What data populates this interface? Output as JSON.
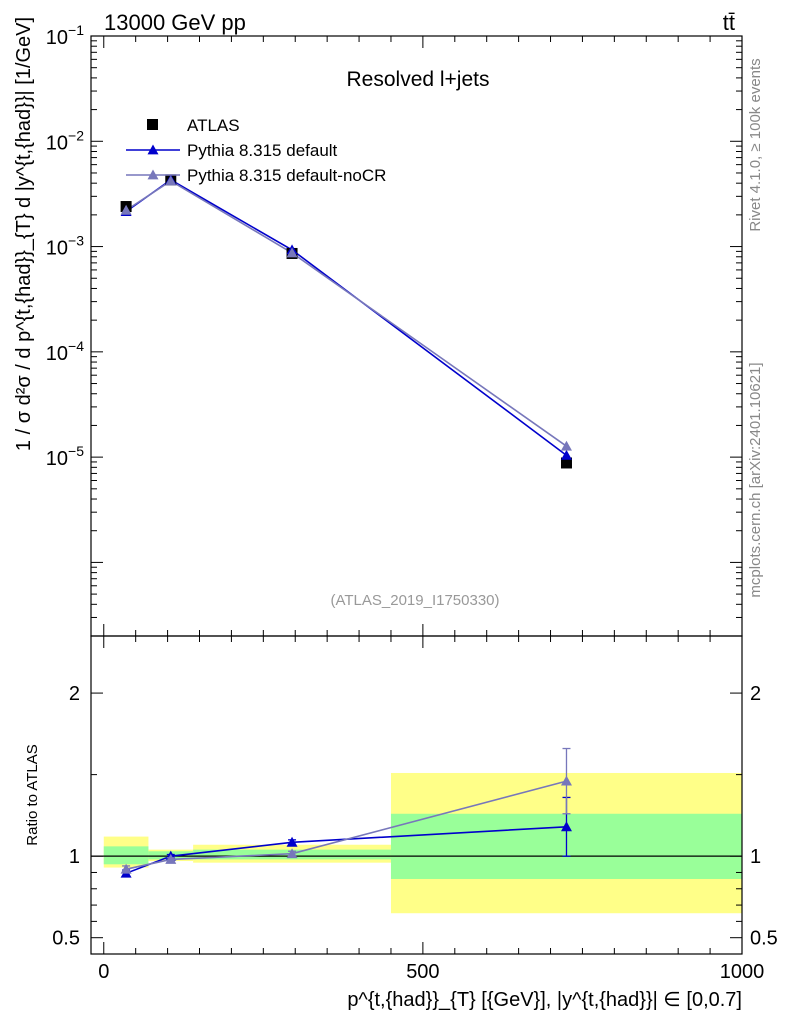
{
  "header": {
    "energy_label": "13000 GeV pp",
    "process_label": "tt̄",
    "analysis_id": "(ATLAS_2019_I1750330)",
    "side_label_top": "Rivet 4.1.0, ≥ 100k events",
    "side_label_bottom": "mcplots.cern.ch [arXiv:2401.10621]"
  },
  "colors": {
    "atlas": "#000000",
    "pythia_default": "#0000cc",
    "pythia_nocr": "#7777bb",
    "band_inner": "#99ff99",
    "band_outer": "#ffff88"
  },
  "chart_data": [
    {
      "type": "line",
      "title": "Resolved l+jets",
      "ylabel": "1 / σ d²σ / d p^{t,{had}}_{T} d |y^{t,{had}}| [1/GeV]",
      "yscale": "log",
      "xlim": [
        -20,
        1000
      ],
      "ylim": [
        2e-07,
        0.1
      ],
      "ytick_labels": [
        "10^-1",
        "10^-2",
        "10^-3",
        "10^-4",
        "10^-5"
      ],
      "legend": {
        "placement": "top-left",
        "entries": [
          "ATLAS",
          "Pythia 8.315 default",
          "Pythia 8.315 default-noCR"
        ]
      },
      "series": [
        {
          "name": "ATLAS",
          "marker": "square",
          "x": [
            35,
            105,
            295,
            725
          ],
          "y": [
            0.0024,
            0.0043,
            0.00086,
            8.8e-06
          ]
        },
        {
          "name": "Pythia 8.315 default",
          "marker": "triangle",
          "x": [
            35,
            105,
            295,
            725
          ],
          "y": [
            0.00215,
            0.0043,
            0.00093,
            1.04e-05
          ]
        },
        {
          "name": "Pythia 8.315 default-noCR",
          "marker": "triangle",
          "x": [
            35,
            105,
            295,
            725
          ],
          "y": [
            0.00221,
            0.0042,
            0.00087,
            1.27e-05
          ]
        }
      ]
    },
    {
      "type": "line",
      "ylabel": "Ratio to ATLAS",
      "xlabel": "p^{t,{had}}_{T} [{GeV}], |y^{t,{had}}| ∈ [0,0.7]",
      "xlim": [
        -20,
        1000
      ],
      "ylim": [
        0.4,
        2.35
      ],
      "xtick_labels": [
        "0",
        "500",
        "1000"
      ],
      "ytick_labels": [
        "0.5",
        "1",
        "2"
      ],
      "reference_line": 1,
      "bins": [
        {
          "lo": 0,
          "hi": 70,
          "inner": [
            0.95,
            1.06
          ],
          "outer": [
            0.93,
            1.12
          ]
        },
        {
          "lo": 70,
          "hi": 140,
          "inner": [
            0.98,
            1.03
          ],
          "outer": [
            0.97,
            1.04
          ]
        },
        {
          "lo": 140,
          "hi": 450,
          "inner": [
            0.98,
            1.04
          ],
          "outer": [
            0.96,
            1.07
          ]
        },
        {
          "lo": 450,
          "hi": 1000,
          "inner": [
            0.86,
            1.26
          ],
          "outer": [
            0.65,
            1.51
          ]
        }
      ],
      "series": [
        {
          "name": "Pythia 8.315 default",
          "x": [
            35,
            105,
            295,
            725
          ],
          "y": [
            0.895,
            1.0,
            1.085,
            1.18
          ],
          "err": [
            0.02,
            0.01,
            0.015,
            0.18
          ]
        },
        {
          "name": "Pythia 8.315 default-noCR",
          "x": [
            35,
            105,
            295,
            725
          ],
          "y": [
            0.92,
            0.98,
            1.015,
            1.46
          ],
          "err": [
            0.02,
            0.01,
            0.015,
            0.2
          ]
        }
      ]
    }
  ]
}
